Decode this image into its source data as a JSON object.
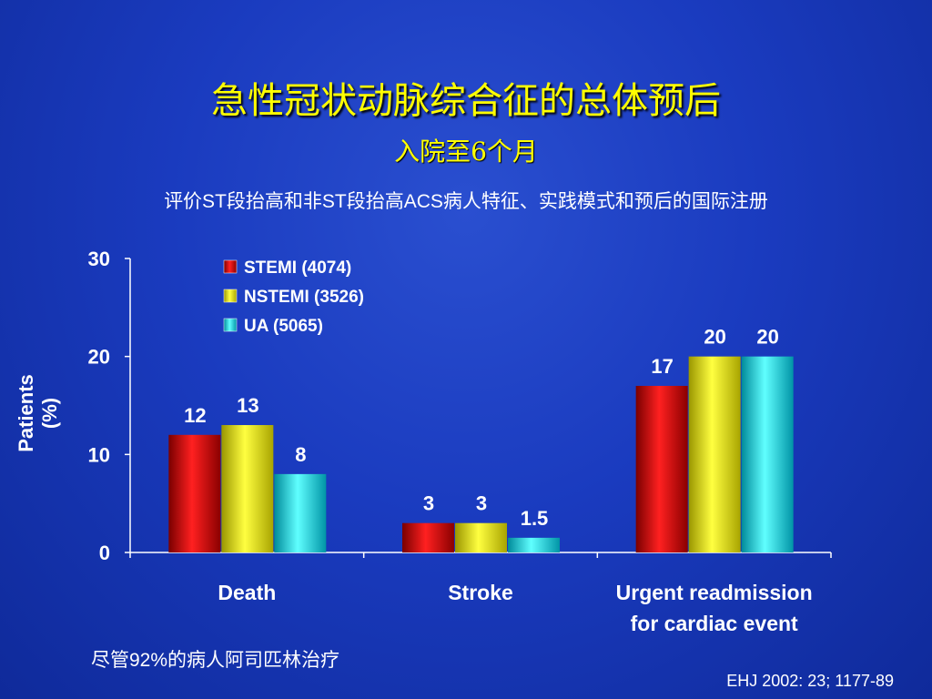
{
  "slide": {
    "title": "急性冠状动脉综合征的总体预后",
    "subtitle": "入院至6个月",
    "description": "评价ST段抬高和非ST段抬高ACS病人特征、实践模式和预后的国际注册",
    "note": "尽管92%的病人阿司匹林治疗",
    "source": "EHJ 2002: 23; 1177-89"
  },
  "colors": {
    "STEMI": "#e00000",
    "NSTEMI": "#f2ef00",
    "UA": "#00d8e8"
  },
  "chart_data": {
    "type": "bar",
    "ylabel": "Patients (%)",
    "ylim": [
      0,
      30
    ],
    "yticks": [
      "0",
      "10",
      "20",
      "30"
    ],
    "categories": [
      "Death",
      "Stroke",
      "Urgent readmission for cardiac event"
    ],
    "series": [
      {
        "name": "STEMI (4074)",
        "values": [
          12,
          3,
          17
        ],
        "labels": [
          "12",
          "3",
          "17"
        ]
      },
      {
        "name": "NSTEMI (3526)",
        "values": [
          13,
          3,
          20
        ],
        "labels": [
          "13",
          "3",
          "20"
        ]
      },
      {
        "name": "UA (5065)",
        "values": [
          8,
          1.5,
          20
        ],
        "labels": [
          "8",
          "1.5",
          "20"
        ]
      }
    ],
    "legend": "top-left"
  }
}
